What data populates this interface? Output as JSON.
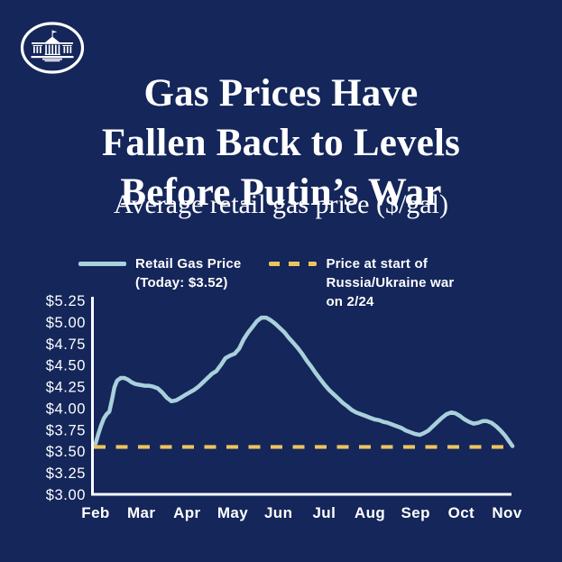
{
  "header": {
    "title_lines": [
      "Gas Prices Have",
      "Fallen Back to Levels",
      "Before Putin’s War"
    ],
    "subtitle": "Average retail gas price ($/gal)"
  },
  "logo": {
    "name": "The White House"
  },
  "legend": {
    "retail_label": "Retail Gas Price\n(Today: $3.52)",
    "war_label": "Price at start of\nRussia/Ukraine war\non 2/24"
  },
  "colors": {
    "background": "#14265A",
    "line": "#A9D0DB",
    "baseline": "#ECC45F",
    "axis": "#FFFFFF",
    "text": "#FFFFFF"
  },
  "chart_data": {
    "type": "line",
    "title": "Average retail gas price ($/gal)",
    "xlabel": "",
    "ylabel": "$/gal",
    "grid": false,
    "legend_position": "top",
    "x_axis": {
      "categories": [
        "Feb",
        "Mar",
        "Apr",
        "May",
        "Jun",
        "Jul",
        "Aug",
        "Sep",
        "Oct",
        "Nov"
      ]
    },
    "y_axis": {
      "min": 3.0,
      "max": 5.25,
      "ticks": [
        {
          "value": 3.0,
          "label": "$3.00"
        },
        {
          "value": 3.25,
          "label": "$3.25"
        },
        {
          "value": 3.5,
          "label": "$3.50"
        },
        {
          "value": 3.75,
          "label": "$3.75"
        },
        {
          "value": 4.0,
          "label": "$4.00"
        },
        {
          "value": 4.25,
          "label": "$4.25"
        },
        {
          "value": 4.5,
          "label": "$4.50"
        },
        {
          "value": 4.75,
          "label": "$4.75"
        },
        {
          "value": 5.0,
          "label": "$5.00"
        },
        {
          "value": 5.25,
          "label": "$5.25"
        }
      ]
    },
    "baseline": {
      "value": 3.55,
      "style": "dashed",
      "label": "Price at start of Russia/Ukraine war on 2/24"
    },
    "series": [
      {
        "name": "Retail Gas Price",
        "today_value": 3.52,
        "points_month_price": [
          [
            0.0,
            3.59
          ],
          [
            0.06,
            3.7
          ],
          [
            0.12,
            3.8
          ],
          [
            0.18,
            3.88
          ],
          [
            0.24,
            3.93
          ],
          [
            0.3,
            3.96
          ],
          [
            0.36,
            4.1
          ],
          [
            0.41,
            4.24
          ],
          [
            0.47,
            4.32
          ],
          [
            0.55,
            4.35
          ],
          [
            0.63,
            4.35
          ],
          [
            0.71,
            4.33
          ],
          [
            0.79,
            4.3
          ],
          [
            0.87,
            4.28
          ],
          [
            0.97,
            4.27
          ],
          [
            1.07,
            4.26
          ],
          [
            1.16,
            4.26
          ],
          [
            1.26,
            4.25
          ],
          [
            1.36,
            4.23
          ],
          [
            1.46,
            4.18
          ],
          [
            1.56,
            4.12
          ],
          [
            1.66,
            4.08
          ],
          [
            1.76,
            4.09
          ],
          [
            1.86,
            4.12
          ],
          [
            1.95,
            4.15
          ],
          [
            2.05,
            4.18
          ],
          [
            2.15,
            4.21
          ],
          [
            2.25,
            4.25
          ],
          [
            2.35,
            4.3
          ],
          [
            2.45,
            4.35
          ],
          [
            2.55,
            4.4
          ],
          [
            2.64,
            4.43
          ],
          [
            2.74,
            4.5
          ],
          [
            2.84,
            4.58
          ],
          [
            2.94,
            4.61
          ],
          [
            3.04,
            4.63
          ],
          [
            3.14,
            4.69
          ],
          [
            3.24,
            4.8
          ],
          [
            3.34,
            4.88
          ],
          [
            3.43,
            4.94
          ],
          [
            3.53,
            5.01
          ],
          [
            3.63,
            5.05
          ],
          [
            3.73,
            5.05
          ],
          [
            3.83,
            5.02
          ],
          [
            3.93,
            4.98
          ],
          [
            4.03,
            4.93
          ],
          [
            4.13,
            4.88
          ],
          [
            4.22,
            4.82
          ],
          [
            4.32,
            4.76
          ],
          [
            4.42,
            4.7
          ],
          [
            4.52,
            4.63
          ],
          [
            4.62,
            4.55
          ],
          [
            4.72,
            4.48
          ],
          [
            4.81,
            4.41
          ],
          [
            4.91,
            4.34
          ],
          [
            5.01,
            4.27
          ],
          [
            5.11,
            4.21
          ],
          [
            5.21,
            4.16
          ],
          [
            5.31,
            4.11
          ],
          [
            5.41,
            4.06
          ],
          [
            5.51,
            4.02
          ],
          [
            5.6,
            3.98
          ],
          [
            5.7,
            3.95
          ],
          [
            5.8,
            3.93
          ],
          [
            5.9,
            3.91
          ],
          [
            6.0,
            3.89
          ],
          [
            6.1,
            3.87
          ],
          [
            6.2,
            3.86
          ],
          [
            6.3,
            3.84
          ],
          [
            6.39,
            3.83
          ],
          [
            6.49,
            3.81
          ],
          [
            6.59,
            3.79
          ],
          [
            6.69,
            3.77
          ],
          [
            6.79,
            3.74
          ],
          [
            6.89,
            3.72
          ],
          [
            6.99,
            3.7
          ],
          [
            7.09,
            3.69
          ],
          [
            7.18,
            3.71
          ],
          [
            7.28,
            3.74
          ],
          [
            7.38,
            3.79
          ],
          [
            7.48,
            3.84
          ],
          [
            7.58,
            3.89
          ],
          [
            7.68,
            3.93
          ],
          [
            7.78,
            3.95
          ],
          [
            7.87,
            3.94
          ],
          [
            7.97,
            3.91
          ],
          [
            8.07,
            3.87
          ],
          [
            8.17,
            3.84
          ],
          [
            8.27,
            3.82
          ],
          [
            8.37,
            3.83
          ],
          [
            8.47,
            3.85
          ],
          [
            8.56,
            3.85
          ],
          [
            8.66,
            3.83
          ],
          [
            8.76,
            3.79
          ],
          [
            8.86,
            3.74
          ],
          [
            8.96,
            3.68
          ],
          [
            9.04,
            3.62
          ],
          [
            9.12,
            3.56
          ]
        ]
      }
    ]
  }
}
